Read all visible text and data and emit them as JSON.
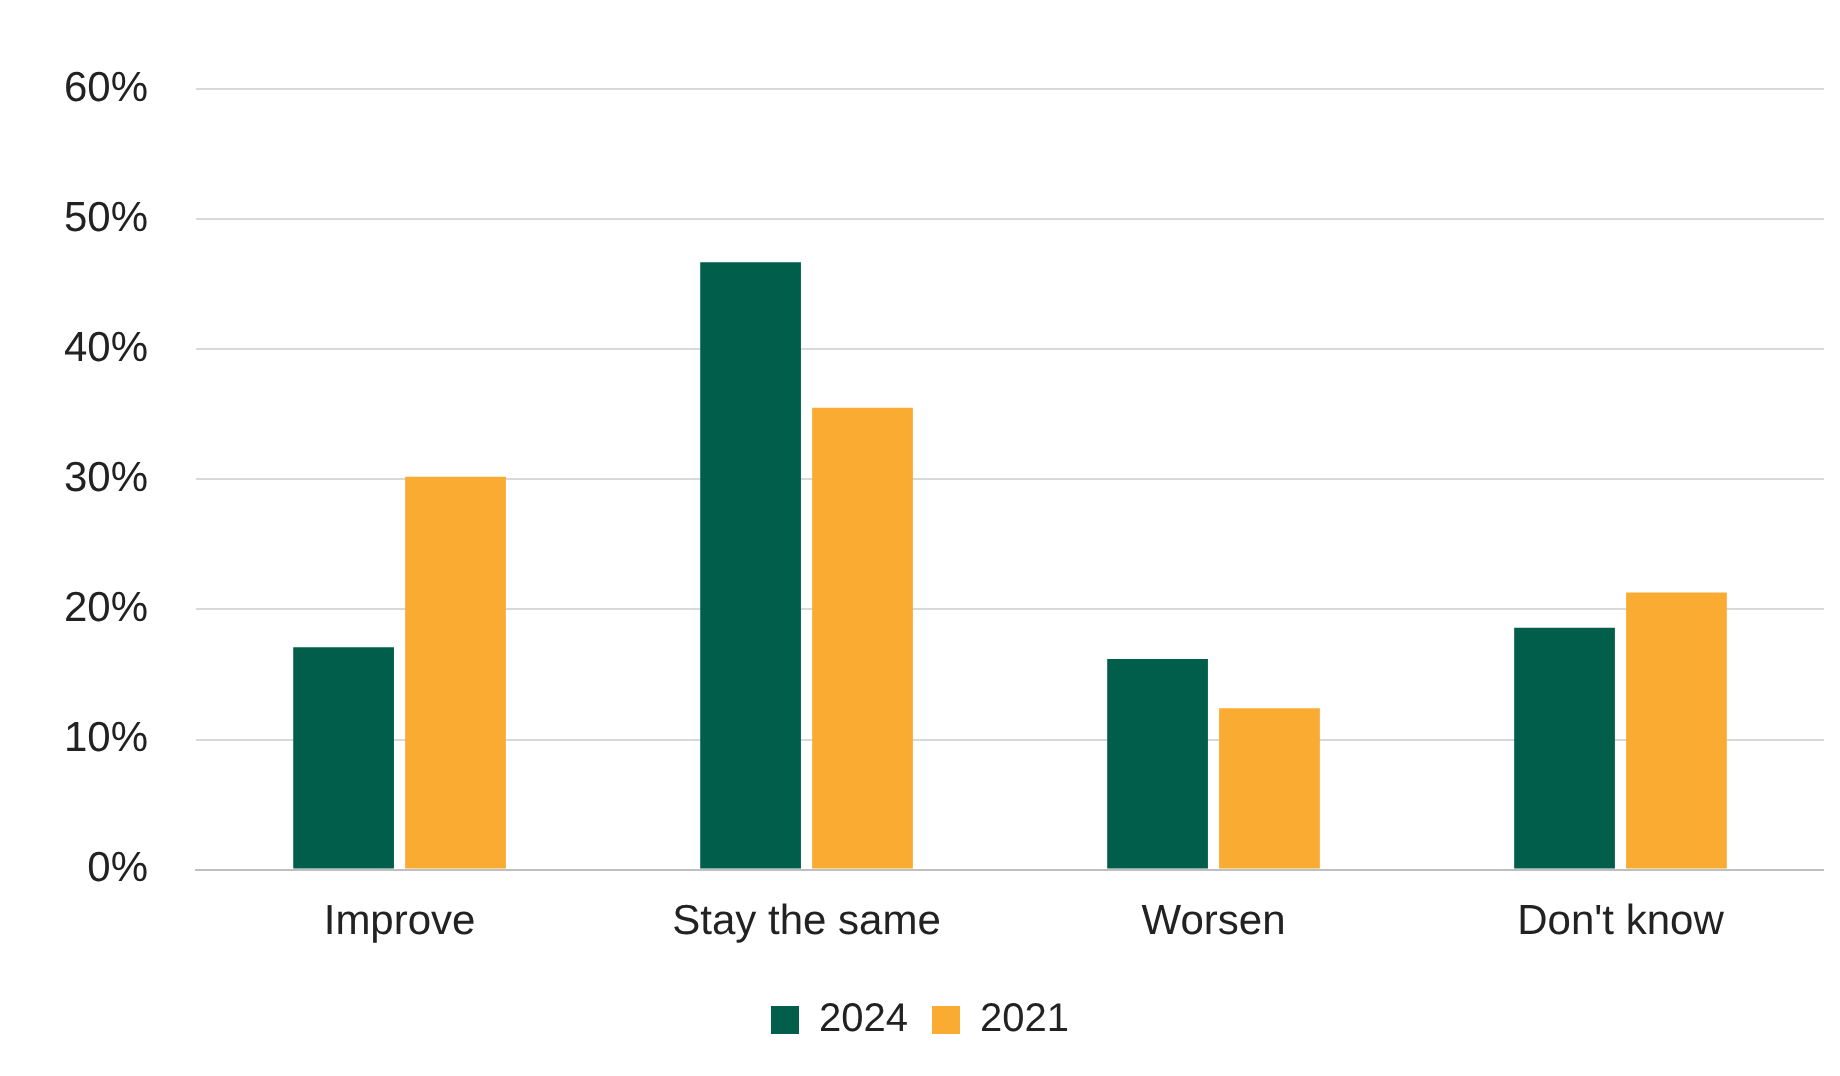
{
  "chart_data": {
    "type": "bar",
    "categories": [
      "Improve",
      "Stay the same",
      "Worsen",
      "Don't know"
    ],
    "series": [
      {
        "name": "2024",
        "color": "#005e4b",
        "values": [
          17.1,
          46.7,
          16.2,
          18.6
        ]
      },
      {
        "name": "2021",
        "color": "#f9ab32",
        "values": [
          30.2,
          35.5,
          12.4,
          21.3
        ]
      }
    ],
    "ylim": [
      0,
      60
    ],
    "yticks": [
      {
        "value": 0,
        "label": "0%"
      },
      {
        "value": 10,
        "label": "10%"
      },
      {
        "value": 20,
        "label": "20%"
      },
      {
        "value": 30,
        "label": "30%"
      },
      {
        "value": 40,
        "label": "40%"
      },
      {
        "value": 50,
        "label": "50%"
      },
      {
        "value": 60,
        "label": "60%"
      }
    ],
    "grid": "y",
    "legend": "bottom"
  }
}
